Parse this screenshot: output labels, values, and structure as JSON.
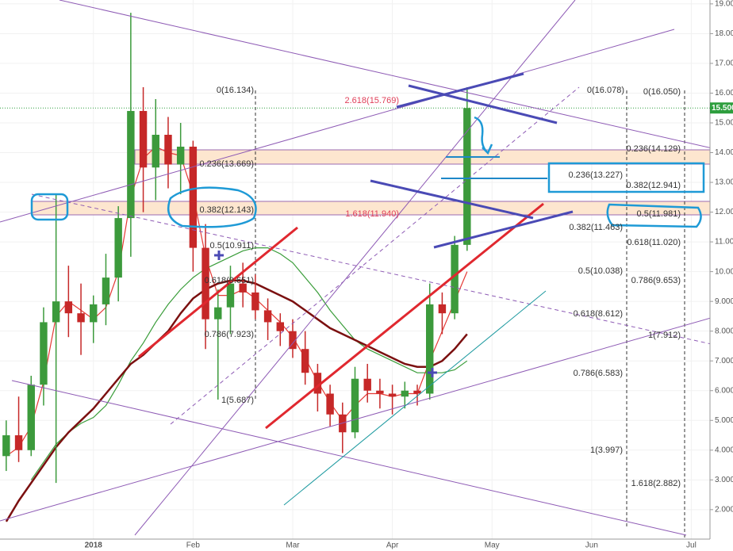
{
  "chart_data": {
    "type": "candlestick",
    "categories": [
      null,
      null,
      null,
      null,
      null,
      null,
      null,
      "2018",
      null,
      null,
      null,
      null,
      null,
      null,
      null,
      "Feb",
      null,
      null,
      null,
      null,
      null,
      null,
      null,
      "Mar",
      null,
      null,
      null,
      null,
      null,
      null,
      null,
      "Apr",
      null,
      null,
      null,
      null,
      null,
      null,
      null,
      "May",
      null,
      null,
      null,
      null,
      null,
      null,
      null,
      "Jun",
      null,
      null,
      null,
      null,
      null,
      null,
      null,
      "Jul",
      null
    ],
    "open": [
      3.8,
      4.5,
      4.0,
      6.2,
      8.3,
      9.0,
      8.6,
      8.3,
      8.9,
      9.8,
      11.8,
      15.4,
      13.5,
      14.6,
      13.6,
      14.2,
      10.8,
      8.4,
      8.8,
      9.6,
      9.3,
      8.7,
      8.3,
      8.0,
      7.4,
      6.6,
      5.9,
      5.2,
      4.6,
      6.4,
      6.0,
      5.9,
      5.8,
      6.0,
      5.9,
      8.9,
      8.6,
      10.9,
      null,
      null,
      null,
      null,
      null,
      null,
      null,
      null,
      null,
      null,
      null,
      null,
      null,
      null,
      null,
      null,
      null,
      null,
      null
    ],
    "high": [
      5.0,
      5.8,
      6.5,
      8.8,
      12.6,
      10.2,
      9.6,
      9.2,
      10.6,
      12.2,
      18.7,
      16.2,
      15.8,
      15.2,
      15.0,
      14.4,
      11.6,
      9.4,
      10.2,
      10.3,
      9.9,
      9.1,
      8.6,
      8.4,
      8.0,
      6.9,
      6.2,
      5.6,
      6.8,
      6.9,
      6.4,
      6.2,
      6.3,
      6.2,
      9.6,
      9.3,
      11.2,
      16.2,
      null,
      null,
      null,
      null,
      null,
      null,
      null,
      null,
      null,
      null,
      null,
      null,
      null,
      null,
      null,
      null,
      null,
      null,
      null
    ],
    "low": [
      3.3,
      3.6,
      3.8,
      5.5,
      2.9,
      7.8,
      7.2,
      7.6,
      8.2,
      9.0,
      10.5,
      12.0,
      12.4,
      12.8,
      12.6,
      10.0,
      7.4,
      5.7,
      7.9,
      8.8,
      8.4,
      7.7,
      7.5,
      7.1,
      6.2,
      5.3,
      4.8,
      3.9,
      4.4,
      5.6,
      5.4,
      5.2,
      5.4,
      5.5,
      5.7,
      7.9,
      8.4,
      10.7,
      null,
      null,
      null,
      null,
      null,
      null,
      null,
      null,
      null,
      null,
      null,
      null,
      null,
      null,
      null,
      null,
      null,
      null,
      null
    ],
    "close": [
      4.5,
      4.0,
      6.2,
      8.3,
      9.0,
      8.6,
      8.3,
      8.9,
      9.8,
      11.8,
      15.4,
      13.5,
      14.6,
      13.6,
      14.2,
      10.8,
      8.4,
      8.8,
      9.6,
      9.3,
      8.7,
      8.3,
      8.0,
      7.4,
      6.6,
      5.9,
      5.2,
      4.6,
      6.4,
      6.0,
      5.9,
      5.8,
      6.0,
      5.9,
      8.9,
      8.6,
      10.9,
      15.5,
      null,
      null,
      null,
      null,
      null,
      null,
      null,
      null,
      null,
      null,
      null,
      null,
      null,
      null,
      null,
      null,
      null,
      null,
      null
    ],
    "up_color": "#3c9a3c",
    "down_color": "#c62828",
    "series": [
      {
        "color": "#e53935",
        "values": [
          3.8,
          4.1,
          4.8,
          6.3,
          8.5,
          9.0,
          8.7,
          8.4,
          8.8,
          10.0,
          12.5,
          13.8,
          14.2,
          14.0,
          13.9,
          12.6,
          10.5,
          9.2,
          9.2,
          9.4,
          9.1,
          8.7,
          8.3,
          7.8,
          7.1,
          6.3,
          5.6,
          5.0,
          5.5,
          5.9,
          5.9,
          5.8,
          5.9,
          5.9,
          7.0,
          8.0,
          9.0,
          10.0,
          null,
          null,
          null,
          null,
          null,
          null,
          null,
          null,
          null,
          null,
          null,
          null,
          null,
          null,
          null,
          null,
          null,
          null,
          null
        ]
      },
      {
        "color": "#3a9d3a",
        "values": [
          null,
          null,
          3.0,
          3.6,
          4.2,
          4.6,
          4.9,
          5.1,
          5.5,
          6.2,
          7.0,
          7.6,
          8.3,
          8.9,
          9.4,
          9.8,
          10.1,
          10.3,
          10.5,
          10.7,
          10.8,
          10.8,
          10.6,
          10.3,
          9.8,
          9.3,
          8.7,
          8.2,
          7.7,
          7.4,
          7.2,
          7.0,
          6.8,
          6.6,
          6.6,
          6.6,
          6.7,
          7.0,
          null,
          null,
          null,
          null,
          null,
          null,
          null,
          null,
          null,
          null,
          null,
          null,
          null,
          null,
          null,
          null,
          null,
          null,
          null
        ]
      },
      {
        "color": "#7b1010",
        "values": [
          1.6,
          2.3,
          2.9,
          3.5,
          4.1,
          4.6,
          5.0,
          5.4,
          5.9,
          6.4,
          6.9,
          7.2,
          7.6,
          8.0,
          8.6,
          9.1,
          9.4,
          9.6,
          9.7,
          9.7,
          9.6,
          9.4,
          9.2,
          9.0,
          8.7,
          8.4,
          8.1,
          7.9,
          7.7,
          7.5,
          7.3,
          7.1,
          6.9,
          6.8,
          6.8,
          7.0,
          7.4,
          7.9,
          null,
          null,
          null,
          null,
          null,
          null,
          null,
          null,
          null,
          null,
          null,
          null,
          null,
          null,
          null,
          null,
          null,
          null,
          null
        ]
      }
    ],
    "ylim": [
      1.01,
      19.13
    ],
    "yticks": [
      {
        "value": 2,
        "label": "2.000"
      },
      {
        "value": 3,
        "label": "3.000"
      },
      {
        "value": 4,
        "label": "4.000"
      },
      {
        "value": 5,
        "label": "5.000"
      },
      {
        "value": 6,
        "label": "6.000"
      },
      {
        "value": 7,
        "label": "7.000"
      },
      {
        "value": 8,
        "label": "8.000"
      },
      {
        "value": 9,
        "label": "9.000"
      },
      {
        "value": 10,
        "label": "10.000"
      },
      {
        "value": 11,
        "label": "11.000"
      },
      {
        "value": 12,
        "label": "12.000"
      },
      {
        "value": 13,
        "label": "13.000"
      },
      {
        "value": 14,
        "label": "14.000"
      },
      {
        "value": 15,
        "label": "15.000"
      },
      {
        "value": 16,
        "label": "16.000"
      },
      {
        "value": 17,
        "label": "17.000"
      },
      {
        "value": 18,
        "label": "18.000"
      },
      {
        "value": 19,
        "label": "19.000"
      }
    ],
    "last_price": {
      "value": 15.5,
      "label": "15.500"
    },
    "last_price_color": "#2e9e3e",
    "grid": true,
    "annotations": [
      {
        "text": "0(16.134)",
        "color": "#333"
      },
      {
        "text": "2.618(15.769)",
        "color": "#e0405a"
      },
      {
        "text": "0(16.078)",
        "color": "#333"
      },
      {
        "text": "0(16.050)",
        "color": "#333"
      },
      {
        "text": "0.236(14.129)",
        "color": "#333"
      },
      {
        "text": "0.236(13.669)",
        "color": "#333"
      },
      {
        "text": "0.236(13.227)",
        "color": "#333"
      },
      {
        "text": "0.382(12.941)",
        "color": "#333"
      },
      {
        "text": "0.382(12.143)",
        "color": "#333"
      },
      {
        "text": "1.618(11.940)",
        "color": "#e0405a"
      },
      {
        "text": "0.5(11.981)",
        "color": "#333"
      },
      {
        "text": "0.382(11.463)",
        "color": "#333"
      },
      {
        "text": "0.618(11.020)",
        "color": "#333"
      },
      {
        "text": "0.5(10.911)",
        "color": "#333"
      },
      {
        "text": "0.5(10.038)",
        "color": "#333"
      },
      {
        "text": "0.618(9.651)",
        "color": "#333"
      },
      {
        "text": "0.786(9.653)",
        "color": "#333"
      },
      {
        "text": "0.618(8.612)",
        "color": "#333"
      },
      {
        "text": "1(7.912)",
        "color": "#333"
      },
      {
        "text": "0.786(7.923)",
        "color": "#333"
      },
      {
        "text": "0.786(6.583)",
        "color": "#333"
      },
      {
        "text": "1(5.687)",
        "color": "#333"
      },
      {
        "text": "1(3.997)",
        "color": "#333"
      },
      {
        "text": "1.618(2.882)",
        "color": "#333"
      }
    ]
  }
}
